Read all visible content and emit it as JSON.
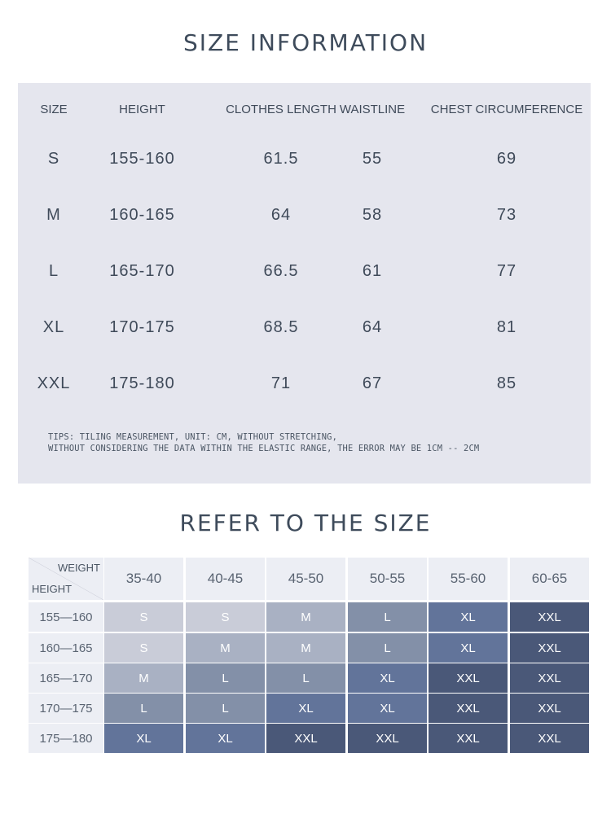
{
  "info": {
    "title": "SIZE INFORMATION",
    "headers": [
      "SIZE",
      "HEIGHT",
      "CLOTHES LENGTH",
      "WAISTLINE",
      "CHEST CIRCUMFERENCE"
    ],
    "rows": [
      [
        "S",
        "155-160",
        "61.5",
        "55",
        "69"
      ],
      [
        "M",
        "160-165",
        "64",
        "58",
        "73"
      ],
      [
        "L",
        "165-170",
        "66.5",
        "61",
        "77"
      ],
      [
        "XL",
        "170-175",
        "68.5",
        "64",
        "81"
      ],
      [
        "XXL",
        "175-180",
        "71",
        "67",
        "85"
      ]
    ],
    "tips_line1": "TIPS: TILING MEASUREMENT, UNIT: CM, WITHOUT STRETCHING,",
    "tips_line2": "WITHOUT CONSIDERING THE DATA WITHIN THE ELASTIC RANGE, THE ERROR MAY BE 1CM -- 2CM"
  },
  "refer": {
    "title": "REFER TO THE SIZE",
    "corner_weight": "WEIGHT",
    "corner_height": "HEIGHT",
    "weights": [
      "35-40",
      "40-45",
      "45-50",
      "50-55",
      "55-60",
      "60-65"
    ],
    "heights": [
      "155—160",
      "160—165",
      "165—170",
      "170—175",
      "175—180"
    ],
    "cells": [
      [
        "S",
        "S",
        "M",
        "L",
        "XL",
        "XXL"
      ],
      [
        "S",
        "M",
        "M",
        "L",
        "XL",
        "XXL"
      ],
      [
        "M",
        "L",
        "L",
        "XL",
        "XXL",
        "XXL"
      ],
      [
        "L",
        "L",
        "XL",
        "XL",
        "XXL",
        "XXL"
      ],
      [
        "XL",
        "XL",
        "XXL",
        "XXL",
        "XXL",
        "XXL"
      ]
    ],
    "size_colors": {
      "S": "#c9ccd8",
      "M": "#a9b1c3",
      "L": "#8390a8",
      "XL": "#62749a",
      "XXL": "#4a5878"
    }
  }
}
